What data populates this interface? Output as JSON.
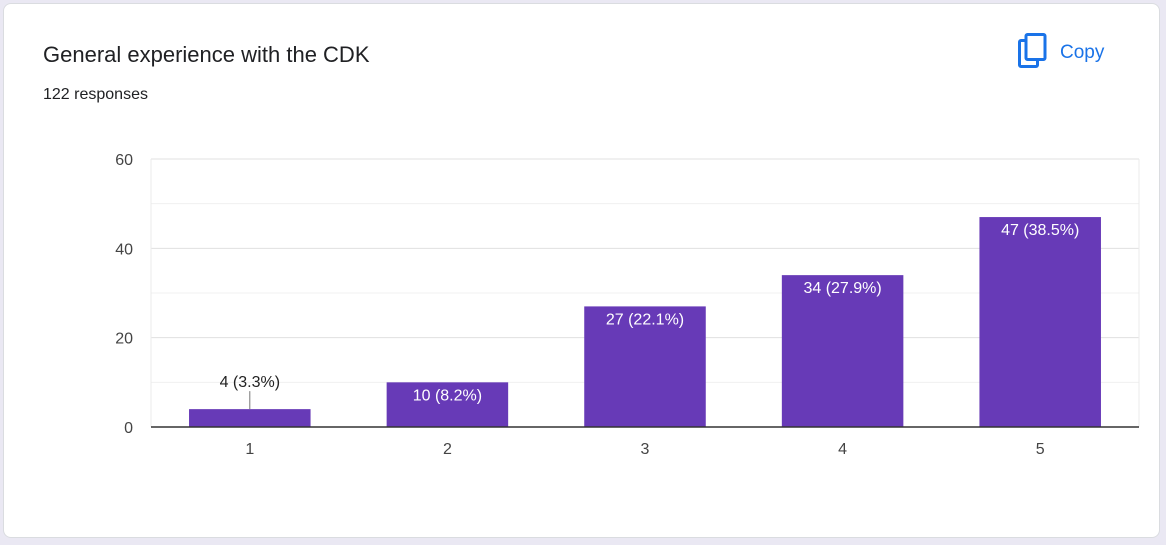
{
  "card": {
    "title": "General experience with the CDK",
    "subtitle": "122 responses",
    "copy_label": "Copy",
    "copy_icon": "copy-icon"
  },
  "colors": {
    "bar": "#673ab7",
    "accent": "#1a73e8",
    "grid": "#e6e6e6",
    "axis": "#333333",
    "text": "#444444"
  },
  "chart_data": {
    "type": "bar",
    "categories": [
      "1",
      "2",
      "3",
      "4",
      "5"
    ],
    "values": [
      4,
      10,
      27,
      34,
      47
    ],
    "data_labels": [
      "4 (3.3%)",
      "10 (8.2%)",
      "27 (22.1%)",
      "34 (27.9%)",
      "47 (38.5%)"
    ],
    "ylim": [
      0,
      60
    ],
    "y_ticks": [
      0,
      20,
      40,
      60
    ],
    "y_minor_step": 10,
    "xlabel": "",
    "ylabel": "",
    "grid": true,
    "legend": "none"
  }
}
